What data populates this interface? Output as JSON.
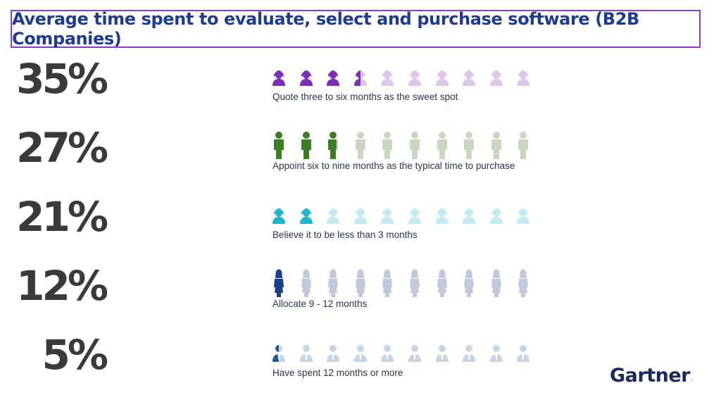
{
  "header": {
    "title": "Average time spent to evaluate, select and purchase software (B2B Companies)"
  },
  "logo": {
    "text": "Gartner",
    "mark": "."
  },
  "chart_data": {
    "type": "pictograph",
    "icons_per_row": 10,
    "rows": [
      {
        "value": 35,
        "label": "35%",
        "description": "Quote three to six months as the sweet spot",
        "icon": "woman-bust-icon",
        "color": "#7b2fb3",
        "light": "#dcc6ea"
      },
      {
        "value": 27,
        "label": "27%",
        "description": "Appoint six to nine months as the typical time to purchase",
        "icon": "man-standing-icon",
        "color": "#3b7d23",
        "light": "#c9d7c0"
      },
      {
        "value": 21,
        "label": "21%",
        "description": "Believe it to be less than 3 months",
        "icon": "woman-bust-icon",
        "color": "#22b5c8",
        "light": "#c4eaf1"
      },
      {
        "value": 12,
        "label": "12%",
        "description": "Allocate 9 - 12 months",
        "icon": "woman-standing-icon",
        "color": "#1d3f8c",
        "light": "#c0c8dc"
      },
      {
        "value": 5,
        "label": "5%",
        "description": "Have spent 12 months or more",
        "icon": "businessman-bust-icon",
        "color": "#205f8a",
        "light": "#c5d6e2"
      }
    ]
  }
}
